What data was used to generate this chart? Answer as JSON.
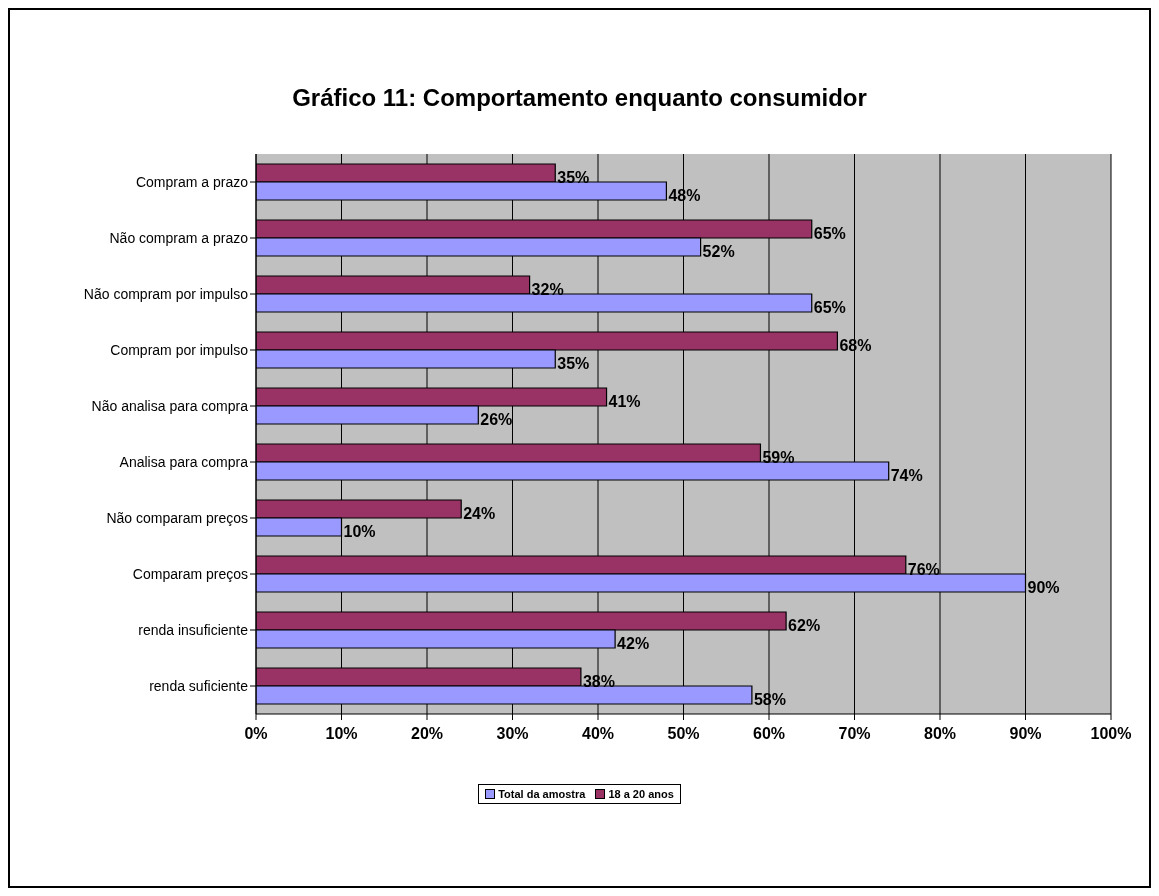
{
  "chart_data": {
    "type": "bar",
    "orientation": "horizontal",
    "title": "Gráfico 11: Comportamento enquanto consumidor",
    "categories": [
      "Compram a prazo",
      "Não compram a prazo",
      "Não compram por impulso",
      "Compram por impulso",
      "Não analisa para compra",
      "Analisa para compra",
      "Não comparam preços",
      "Comparam preços",
      "renda insuficiente",
      "renda suficiente"
    ],
    "series": [
      {
        "name": "Total da amostra",
        "color": "#9999ff",
        "values": [
          48,
          52,
          65,
          35,
          26,
          74,
          10,
          90,
          42,
          58
        ],
        "value_labels": [
          "48%",
          "52%",
          "65%",
          "35%",
          "26%",
          "74%",
          "10%",
          "90%",
          "42%",
          "58%"
        ]
      },
      {
        "name": "18 a 20 anos",
        "color": "#993366",
        "values": [
          35,
          65,
          32,
          68,
          41,
          59,
          24,
          76,
          62,
          38
        ],
        "value_labels": [
          "35%",
          "65%",
          "32%",
          "68%",
          "41%",
          "59%",
          "24%",
          "76%",
          "62%",
          "38%"
        ]
      }
    ],
    "xlim": [
      0,
      100
    ],
    "xticks": [
      {
        "value": 0,
        "label": "0%"
      },
      {
        "value": 10,
        "label": "10%"
      },
      {
        "value": 20,
        "label": "20%"
      },
      {
        "value": 30,
        "label": "30%"
      },
      {
        "value": 40,
        "label": "40%"
      },
      {
        "value": 50,
        "label": "50%"
      },
      {
        "value": 60,
        "label": "60%"
      },
      {
        "value": 70,
        "label": "70%"
      },
      {
        "value": 80,
        "label": "80%"
      },
      {
        "value": 90,
        "label": "90%"
      },
      {
        "value": 100,
        "label": "100%"
      }
    ],
    "grid": "x",
    "legend": "bottom"
  }
}
